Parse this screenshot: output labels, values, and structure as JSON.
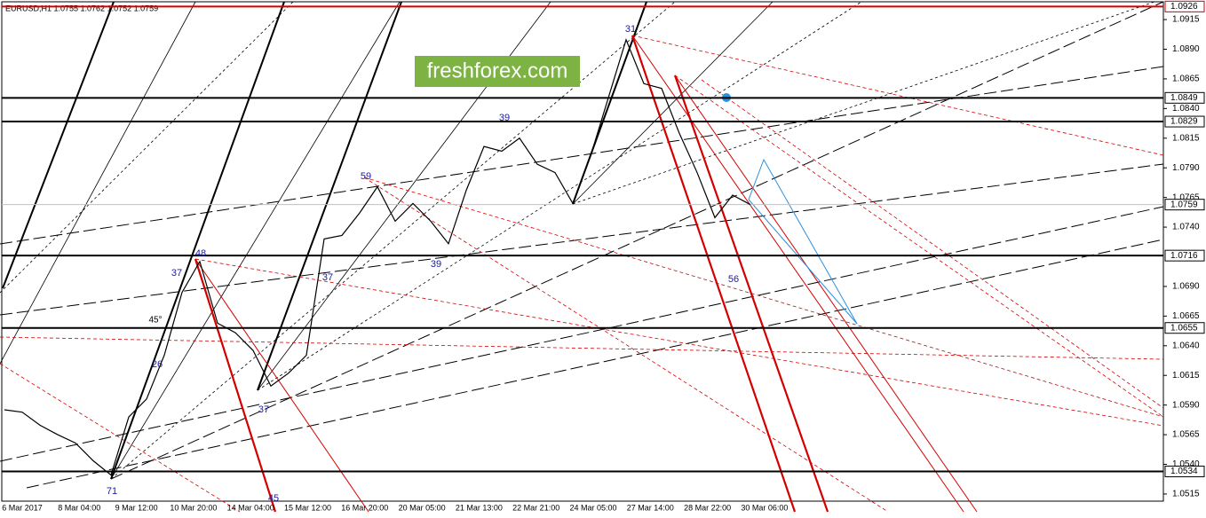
{
  "chart_data": {
    "type": "line",
    "header": "EURUSD,H1  1.0755 1.0762 1.0752 1.0759",
    "watermark": "freshforex.com",
    "values": [
      1.0586,
      1.0584,
      1.0573,
      1.0565,
      1.0558,
      1.0543,
      1.0531,
      1.058,
      1.0595,
      1.0632,
      1.0685,
      1.0711,
      1.0659,
      1.0651,
      1.0636,
      1.0606,
      1.0617,
      1.0632,
      1.073,
      1.0733,
      1.0752,
      1.0774,
      1.0745,
      1.076,
      1.0745,
      1.0726,
      1.0771,
      1.0808,
      1.0804,
      1.0815,
      1.0793,
      1.0786,
      1.076,
      1.08,
      1.0849,
      1.0898,
      1.0861,
      1.0857,
      1.0819,
      1.0786,
      1.0748,
      1.0767,
      1.0759
    ],
    "color": "#000000",
    "ylim": [
      1.05,
      1.093
    ],
    "yticks": [
      {
        "value": 1.0915,
        "label": "1.0915"
      },
      {
        "value": 1.089,
        "label": "1.0890"
      },
      {
        "value": 1.0865,
        "label": "1.0865"
      },
      {
        "value": 1.084,
        "label": "1.0840"
      },
      {
        "value": 1.0815,
        "label": "1.0815"
      },
      {
        "value": 1.079,
        "label": "1.0790"
      },
      {
        "value": 1.0765,
        "label": "1.0765"
      },
      {
        "value": 1.074,
        "label": "1.0740"
      },
      {
        "value": 1.069,
        "label": "1.0690"
      },
      {
        "value": 1.0665,
        "label": "1.0665"
      },
      {
        "value": 1.064,
        "label": "1.0640"
      },
      {
        "value": 1.0615,
        "label": "1.0615"
      },
      {
        "value": 1.059,
        "label": "1.0590"
      },
      {
        "value": 1.0565,
        "label": "1.0565"
      },
      {
        "value": 1.054,
        "label": "1.0540"
      },
      {
        "value": 1.0515,
        "label": "1.0515"
      }
    ],
    "xticks": [
      "6 Mar 2017",
      "8 Mar 04:00",
      "9 Mar 12:00",
      "10 Mar 20:00",
      "14 Mar 04:00",
      "15 Mar 12:00",
      "16 Mar 20:00",
      "20 Mar 05:00",
      "21 Mar 13:00",
      "22 Mar 21:00",
      "24 Mar 05:00",
      "27 Mar 14:00",
      "28 Mar 22:00",
      "30 Mar 06:00"
    ],
    "levels": [
      {
        "value": 1.0926,
        "color": "#d40000"
      },
      {
        "value": 1.0849,
        "color": "#000000"
      },
      {
        "value": 1.0829,
        "color": "#000000"
      },
      {
        "value": 1.0716,
        "color": "#000000"
      },
      {
        "value": 1.0655,
        "color": "#000000"
      },
      {
        "value": 1.0534,
        "color": "#000000"
      },
      {
        "value": 1.0759,
        "color": "#c0c0c0"
      }
    ],
    "annotations": [
      "31",
      "39",
      "59",
      "39",
      "37",
      "48",
      "37",
      "45°",
      "26",
      "37",
      "71",
      "56",
      "45"
    ]
  }
}
